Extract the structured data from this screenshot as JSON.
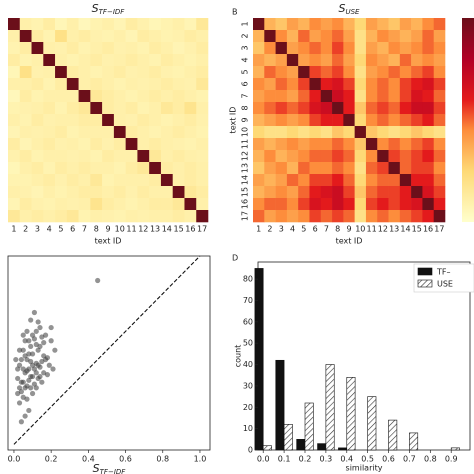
{
  "chart_data": [
    {
      "type": "heatmap",
      "title": "S",
      "title_subscript": "TF−IDF",
      "x_label": "text ID",
      "clim": [
        0,
        1
      ],
      "cmap": "YlOrRd",
      "categories": [
        "1",
        "2",
        "3",
        "4",
        "5",
        "6",
        "7",
        "8",
        "9",
        "10",
        "11",
        "12",
        "13",
        "14",
        "15",
        "16",
        "17"
      ],
      "values": [
        [
          1,
          0.1,
          0.08,
          0.12,
          0.06,
          0.1,
          0.05,
          0.08,
          0.1,
          0.07,
          0.12,
          0.09,
          0.06,
          0.08,
          0.1,
          0.07,
          0.15
        ],
        [
          0.1,
          1,
          0.12,
          0.08,
          0.2,
          0.1,
          0.12,
          0.09,
          0.08,
          0.1,
          0.07,
          0.12,
          0.1,
          0.08,
          0.09,
          0.12,
          0.1
        ],
        [
          0.08,
          0.12,
          1,
          0.1,
          0.09,
          0.12,
          0.08,
          0.1,
          0.12,
          0.09,
          0.1,
          0.08,
          0.12,
          0.1,
          0.07,
          0.09,
          0.12
        ],
        [
          0.12,
          0.08,
          0.1,
          1,
          0.1,
          0.08,
          0.1,
          0.12,
          0.09,
          0.1,
          0.12,
          0.1,
          0.08,
          0.12,
          0.1,
          0.08,
          0.1
        ],
        [
          0.06,
          0.2,
          0.09,
          0.1,
          1,
          0.12,
          0.1,
          0.08,
          0.1,
          0.12,
          0.09,
          0.1,
          0.12,
          0.09,
          0.08,
          0.1,
          0.12
        ],
        [
          0.1,
          0.1,
          0.12,
          0.08,
          0.12,
          1,
          0.1,
          0.12,
          0.1,
          0.08,
          0.1,
          0.09,
          0.1,
          0.12,
          0.1,
          0.09,
          0.15
        ],
        [
          0.05,
          0.12,
          0.08,
          0.1,
          0.1,
          0.1,
          1,
          0.15,
          0.12,
          0.1,
          0.08,
          0.1,
          0.12,
          0.1,
          0.12,
          0.1,
          0.08
        ],
        [
          0.08,
          0.09,
          0.1,
          0.12,
          0.08,
          0.12,
          0.15,
          1,
          0.12,
          0.1,
          0.12,
          0.08,
          0.1,
          0.15,
          0.12,
          0.18,
          0.1
        ],
        [
          0.1,
          0.08,
          0.12,
          0.09,
          0.1,
          0.1,
          0.12,
          0.12,
          1,
          0.1,
          0.09,
          0.12,
          0.1,
          0.08,
          0.1,
          0.12,
          0.09
        ],
        [
          0.07,
          0.1,
          0.09,
          0.1,
          0.12,
          0.08,
          0.1,
          0.1,
          0.1,
          1,
          0.12,
          0.1,
          0.08,
          0.1,
          0.12,
          0.1,
          0.08
        ],
        [
          0.12,
          0.07,
          0.1,
          0.12,
          0.09,
          0.1,
          0.08,
          0.12,
          0.09,
          0.12,
          1,
          0.1,
          0.12,
          0.1,
          0.09,
          0.08,
          0.1
        ],
        [
          0.09,
          0.12,
          0.08,
          0.1,
          0.1,
          0.09,
          0.1,
          0.08,
          0.12,
          0.1,
          0.1,
          1,
          0.15,
          0.1,
          0.12,
          0.1,
          0.09
        ],
        [
          0.06,
          0.1,
          0.12,
          0.08,
          0.12,
          0.1,
          0.12,
          0.1,
          0.1,
          0.08,
          0.12,
          0.15,
          1,
          0.12,
          0.1,
          0.12,
          0.1
        ],
        [
          0.08,
          0.08,
          0.1,
          0.12,
          0.09,
          0.12,
          0.1,
          0.15,
          0.08,
          0.1,
          0.1,
          0.1,
          0.12,
          1,
          0.1,
          0.12,
          0.1
        ],
        [
          0.1,
          0.09,
          0.07,
          0.1,
          0.08,
          0.1,
          0.12,
          0.12,
          0.1,
          0.12,
          0.09,
          0.12,
          0.1,
          0.1,
          1,
          0.15,
          0.12
        ],
        [
          0.07,
          0.12,
          0.09,
          0.08,
          0.1,
          0.09,
          0.1,
          0.18,
          0.12,
          0.1,
          0.08,
          0.1,
          0.12,
          0.12,
          0.15,
          1,
          0.1
        ],
        [
          0.15,
          0.1,
          0.12,
          0.1,
          0.12,
          0.15,
          0.08,
          0.1,
          0.09,
          0.08,
          0.1,
          0.09,
          0.1,
          0.1,
          0.12,
          0.1,
          1
        ]
      ]
    },
    {
      "type": "heatmap",
      "panel_label": "B",
      "title": "S",
      "title_subscript": "USE",
      "x_label": "text ID",
      "y_label": "text ID",
      "clim": [
        0,
        1
      ],
      "cmap": "YlOrRd",
      "colorbar": true,
      "categories": [
        "1",
        "2",
        "3",
        "4",
        "5",
        "6",
        "7",
        "8",
        "9",
        "10",
        "11",
        "12",
        "13",
        "14",
        "15",
        "16",
        "17"
      ],
      "y_categories": [
        "1",
        "2",
        "3",
        "4",
        "5",
        "6",
        "7",
        "8",
        "9",
        "10",
        "11",
        "12",
        "13",
        "14",
        "15",
        "16",
        "17"
      ],
      "values": [
        [
          1,
          0.35,
          0.3,
          0.4,
          0.35,
          0.45,
          0.4,
          0.45,
          0.35,
          0.25,
          0.4,
          0.35,
          0.3,
          0.4,
          0.35,
          0.45,
          0.5
        ],
        [
          0.35,
          1,
          0.45,
          0.35,
          0.5,
          0.4,
          0.45,
          0.5,
          0.4,
          0.2,
          0.35,
          0.45,
          0.4,
          0.35,
          0.4,
          0.5,
          0.4
        ],
        [
          0.3,
          0.45,
          1,
          0.4,
          0.45,
          0.5,
          0.45,
          0.55,
          0.45,
          0.2,
          0.4,
          0.35,
          0.45,
          0.4,
          0.45,
          0.5,
          0.45
        ],
        [
          0.4,
          0.35,
          0.4,
          1,
          0.4,
          0.45,
          0.4,
          0.5,
          0.4,
          0.25,
          0.45,
          0.4,
          0.35,
          0.5,
          0.4,
          0.45,
          0.4
        ],
        [
          0.35,
          0.5,
          0.45,
          0.4,
          1,
          0.55,
          0.5,
          0.55,
          0.45,
          0.2,
          0.4,
          0.45,
          0.5,
          0.45,
          0.5,
          0.55,
          0.45
        ],
        [
          0.45,
          0.4,
          0.5,
          0.45,
          0.55,
          1,
          0.6,
          0.65,
          0.55,
          0.25,
          0.45,
          0.5,
          0.45,
          0.55,
          0.6,
          0.65,
          0.55
        ],
        [
          0.4,
          0.45,
          0.45,
          0.4,
          0.5,
          0.6,
          1,
          0.7,
          0.6,
          0.2,
          0.45,
          0.5,
          0.45,
          0.55,
          0.65,
          0.6,
          0.5
        ],
        [
          0.45,
          0.5,
          0.55,
          0.5,
          0.55,
          0.65,
          0.7,
          1,
          0.6,
          0.3,
          0.5,
          0.55,
          0.5,
          0.6,
          0.7,
          0.7,
          0.55
        ],
        [
          0.35,
          0.4,
          0.45,
          0.4,
          0.45,
          0.55,
          0.6,
          0.6,
          1,
          0.25,
          0.45,
          0.5,
          0.45,
          0.5,
          0.55,
          0.6,
          0.5
        ],
        [
          0.25,
          0.2,
          0.2,
          0.25,
          0.2,
          0.25,
          0.2,
          0.3,
          0.25,
          1,
          0.3,
          0.25,
          0.2,
          0.25,
          0.3,
          0.25,
          0.2
        ],
        [
          0.4,
          0.35,
          0.4,
          0.45,
          0.4,
          0.45,
          0.45,
          0.5,
          0.45,
          0.3,
          1,
          0.45,
          0.5,
          0.45,
          0.5,
          0.55,
          0.45
        ],
        [
          0.35,
          0.45,
          0.35,
          0.4,
          0.45,
          0.5,
          0.5,
          0.55,
          0.5,
          0.25,
          0.45,
          1,
          0.55,
          0.5,
          0.55,
          0.6,
          0.5
        ],
        [
          0.3,
          0.4,
          0.45,
          0.35,
          0.5,
          0.45,
          0.45,
          0.5,
          0.45,
          0.2,
          0.5,
          0.55,
          1,
          0.5,
          0.55,
          0.55,
          0.45
        ],
        [
          0.4,
          0.35,
          0.4,
          0.5,
          0.45,
          0.55,
          0.55,
          0.6,
          0.5,
          0.25,
          0.45,
          0.5,
          0.5,
          1,
          0.6,
          0.6,
          0.5
        ],
        [
          0.35,
          0.4,
          0.45,
          0.4,
          0.5,
          0.6,
          0.65,
          0.7,
          0.55,
          0.3,
          0.5,
          0.55,
          0.55,
          0.6,
          1,
          0.65,
          0.55
        ],
        [
          0.45,
          0.5,
          0.5,
          0.45,
          0.55,
          0.65,
          0.6,
          0.7,
          0.6,
          0.25,
          0.55,
          0.6,
          0.55,
          0.6,
          0.65,
          1,
          0.6
        ],
        [
          0.5,
          0.4,
          0.45,
          0.4,
          0.45,
          0.55,
          0.5,
          0.55,
          0.5,
          0.2,
          0.45,
          0.5,
          0.45,
          0.5,
          0.55,
          0.6,
          1
        ]
      ]
    },
    {
      "type": "scatter",
      "x_label": "S",
      "x_label_subscript": "TF−IDF",
      "color": "#3a3a3a",
      "xlim": [
        -0.032,
        1.054
      ],
      "ylim": [
        -0.03,
        1.0
      ],
      "xticks": [
        {
          "value": 0,
          "label": "0.0"
        },
        0.2,
        0.4,
        0.6,
        0.8,
        {
          "value": 1,
          "label": "1.0"
        }
      ],
      "x": [
        0.02,
        0.03,
        0.04,
        0.05,
        0.06,
        0.07,
        0.08,
        0.09,
        0.1,
        0.11,
        0.12,
        0.13,
        0.14,
        0.15,
        0.16,
        0.17,
        0.18,
        0.2,
        0.22,
        0.45,
        0.03,
        0.04,
        0.05,
        0.06,
        0.07,
        0.08,
        0.09,
        0.1,
        0.11,
        0.12,
        0.13,
        0.14,
        0.15,
        0.16,
        0.1,
        0.08,
        0.06,
        0.05,
        0.07,
        0.09,
        0.11,
        0.13,
        0.02,
        0.04,
        0.06,
        0.08,
        0.1,
        0.12,
        0.14,
        0.16,
        0.18,
        0.2,
        0.03,
        0.05,
        0.07,
        0.09,
        0.11,
        0.13,
        0.15,
        0.17,
        0.04,
        0.06,
        0.08,
        0.1,
        0.12,
        0.14,
        0.02,
        0.05,
        0.07,
        0.09,
        0.03,
        0.12,
        0.19,
        0.21,
        0.01
      ],
      "y": [
        0.35,
        0.42,
        0.28,
        0.5,
        0.38,
        0.45,
        0.55,
        0.3,
        0.48,
        0.4,
        0.6,
        0.35,
        0.52,
        0.44,
        0.38,
        0.58,
        0.46,
        0.62,
        0.5,
        0.87,
        0.22,
        0.33,
        0.25,
        0.47,
        0.31,
        0.4,
        0.52,
        0.36,
        0.56,
        0.43,
        0.65,
        0.41,
        0.33,
        0.54,
        0.27,
        0.18,
        0.15,
        0.4,
        0.6,
        0.66,
        0.7,
        0.5,
        0.27,
        0.45,
        0.55,
        0.34,
        0.42,
        0.38,
        0.62,
        0.47,
        0.37,
        0.55,
        0.5,
        0.33,
        0.39,
        0.44,
        0.32,
        0.42,
        0.57,
        0.45,
        0.12,
        0.3,
        0.48,
        0.58,
        0.3,
        0.36,
        0.4,
        0.58,
        0.24,
        0.36,
        0.3,
        0.53,
        0.42,
        0.4,
        0.45
      ]
    },
    {
      "type": "bar",
      "panel_label": "D",
      "x_label": "similarity",
      "y_label": "count",
      "legend": "upper right",
      "xlim": [
        -0.025,
        0.99
      ],
      "ylim": [
        0,
        88
      ],
      "xticks": [
        {
          "value": 0,
          "label": "0.0"
        },
        0.1,
        0.2,
        0.3,
        0.4,
        0.5,
        0.6,
        0.7,
        0.8,
        0.9
      ],
      "yticks": [
        0,
        10,
        20,
        30,
        40,
        50,
        60,
        70,
        80
      ],
      "x": [
        0,
        0.1,
        0.2,
        0.3,
        0.4,
        0.5,
        0.6,
        0.7,
        0.8,
        0.9
      ],
      "series": [
        {
          "name": "TF–",
          "color": "#111111",
          "values": [
            85,
            42,
            5,
            3,
            1,
            0,
            0,
            0,
            0,
            0
          ]
        },
        {
          "name": "USE",
          "color": "hatch",
          "values": [
            2,
            12,
            22,
            40,
            34,
            25,
            14,
            8,
            0,
            1
          ]
        }
      ]
    }
  ]
}
